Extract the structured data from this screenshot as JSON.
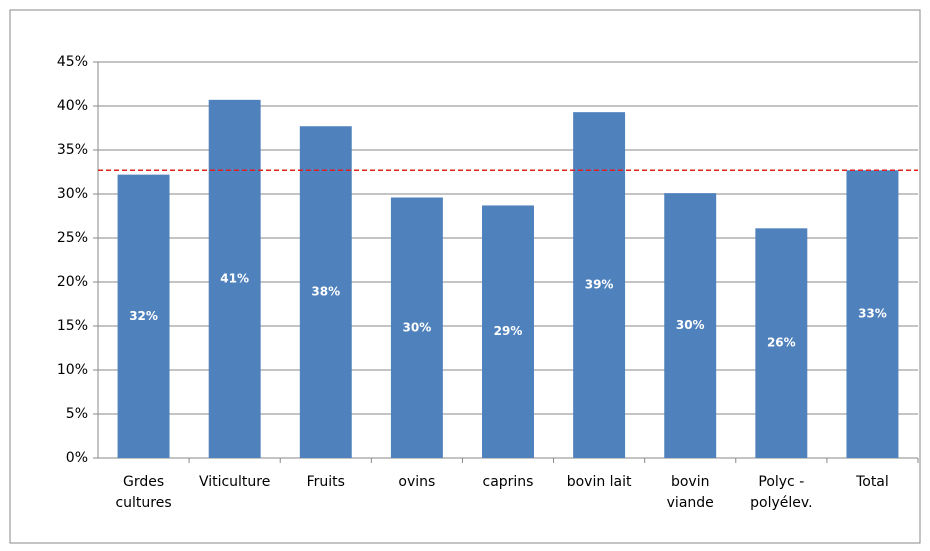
{
  "chart_data": {
    "type": "bar",
    "categories": [
      "Grdes\ncultures",
      "Viticulture",
      "Fruits",
      "ovins",
      "caprins",
      "bovin lait",
      "bovin\nviande",
      "Polyc -\npolyélev.",
      "Total"
    ],
    "values": [
      32.2,
      40.7,
      37.7,
      29.6,
      28.7,
      39.3,
      30.1,
      26.1,
      32.7
    ],
    "value_labels": [
      "32%",
      "41%",
      "38%",
      "30%",
      "29%",
      "39%",
      "30%",
      "26%",
      "33%"
    ],
    "color": "#4f81bd",
    "reference_line": 32.7,
    "reference_color": "#e0201c",
    "ylim": [
      0,
      45
    ],
    "yticks": [
      {
        "value": 0,
        "label": "0%"
      },
      {
        "value": 5,
        "label": "5%"
      },
      {
        "value": 10,
        "label": "10%"
      },
      {
        "value": 15,
        "label": "15%"
      },
      {
        "value": 20,
        "label": "20%"
      },
      {
        "value": 25,
        "label": "25%"
      },
      {
        "value": 30,
        "label": "30%"
      },
      {
        "value": 35,
        "label": "35%"
      },
      {
        "value": 40,
        "label": "40%"
      },
      {
        "value": 45,
        "label": "45%"
      }
    ],
    "grid": true
  }
}
